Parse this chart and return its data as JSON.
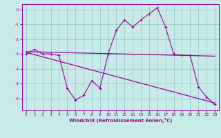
{
  "xlabel": "Windchill (Refroidissement éolien,°C)",
  "bg_color": "#c8eae8",
  "line_color": "#990099",
  "grid_color": "#99cccc",
  "x_ticks": [
    0,
    1,
    2,
    3,
    4,
    5,
    6,
    7,
    8,
    9,
    10,
    11,
    12,
    13,
    14,
    15,
    16,
    17,
    18,
    19,
    20,
    21,
    22,
    23
  ],
  "y_ticks": [
    0,
    -1,
    -2,
    -3,
    -4,
    -5,
    -6
  ],
  "ylim": [
    -6.8,
    0.35
  ],
  "xlim": [
    -0.5,
    23.5
  ],
  "series1_x": [
    0,
    1,
    2,
    3,
    4,
    5,
    6,
    7,
    8,
    9,
    10,
    11,
    12,
    13,
    14,
    15,
    16,
    17,
    18,
    19,
    20,
    21,
    22,
    23
  ],
  "series1_y": [
    -3.0,
    -2.7,
    -3.0,
    -3.0,
    -3.1,
    -5.3,
    -6.1,
    -5.8,
    -4.8,
    -5.3,
    -3.0,
    -1.4,
    -0.7,
    -1.2,
    -0.7,
    -0.3,
    0.1,
    -1.2,
    -3.0,
    -3.1,
    -3.1,
    -5.2,
    -5.9,
    -6.4
  ],
  "trend1_x": [
    0,
    23
  ],
  "trend1_y": [
    -2.85,
    -3.15
  ],
  "trend2_x": [
    0,
    23
  ],
  "trend2_y": [
    -2.9,
    -6.3
  ]
}
